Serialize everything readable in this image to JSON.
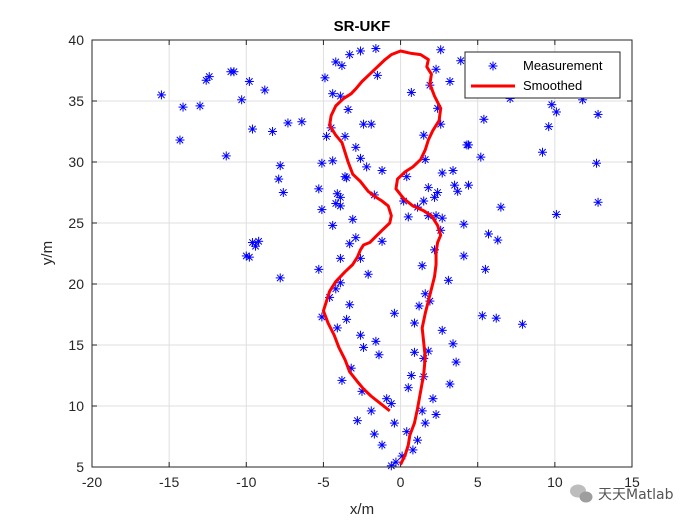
{
  "chart_data": {
    "type": "scatter",
    "title": "SR-UKF",
    "xlabel": "x/m",
    "ylabel": "y/m",
    "xlim": [
      -20,
      15
    ],
    "ylim": [
      5,
      40
    ],
    "xticks": [
      -20,
      -15,
      -10,
      -5,
      0,
      5,
      10,
      15
    ],
    "yticks": [
      5,
      10,
      15,
      20,
      25,
      30,
      35,
      40
    ],
    "grid": true,
    "legend_position": "top-right",
    "series": [
      {
        "name": "Measurement",
        "marker": "asterisk",
        "color": "#0000ff",
        "x": [
          -0.3,
          0.1,
          0.8,
          -0.6,
          1.1,
          0.4,
          -1.2,
          1.6,
          -1.7,
          2.3,
          -0.4,
          1.4,
          -2.8,
          2.1,
          -1.9,
          3.2,
          -0.9,
          -2.5,
          0.5,
          1.5,
          -3.8,
          0.7,
          -3.2,
          3.6,
          -1.4,
          -2.4,
          1.8,
          -1.6,
          3.4,
          -2.6,
          -4.1,
          0.9,
          2.7,
          -3.5,
          5.3,
          -0.4,
          1.2,
          -5.1,
          -3.3,
          1.9,
          -4.6,
          6.2,
          -4.2,
          1.6,
          7.9,
          -3.9,
          3.1,
          -2.1,
          -5.3,
          1.4,
          5.5,
          -7.8,
          -3.9,
          2.2,
          -2.6,
          4.1,
          -3.3,
          6.3,
          -1.2,
          2.6,
          -9.6,
          -4.4,
          5.7,
          -10.0,
          -3.1,
          2.3,
          -5.1,
          6.5,
          -3.9,
          1.5,
          -9.4,
          -4.1,
          2.2,
          -9.8,
          -5.3,
          4.4,
          0.4,
          -3.6,
          2.7,
          -5.1,
          3.4,
          -2.2,
          5.2,
          -7.9,
          -2.6,
          1.6,
          -2.9,
          -7.6,
          4.4,
          -3.6,
          1.5,
          -6.4,
          2.6,
          -2.4,
          5.4,
          -8.3,
          -3.4,
          2.4,
          9.8,
          -3.9,
          0.7,
          -4.4,
          -8.8,
          3.2,
          -4.9,
          1.9,
          -1.5,
          5.8,
          -3.8,
          2.3,
          -4.2,
          3.9,
          -11.0,
          -9.8,
          -3.3,
          10.1,
          -2.6,
          2.6,
          -4.5,
          -10.3,
          12.8,
          -14.1,
          7.1,
          -4.8,
          -12.6,
          9.2,
          -1.6,
          12.7,
          -9.6,
          4.3,
          -15.5,
          -3.9,
          -7.3,
          1.8,
          -14.3,
          -13.0,
          -7.8,
          11.8,
          -11.3,
          -9.2,
          9.6,
          -2.9,
          12.8,
          -10.8,
          -12.4,
          10.1,
          -1.9,
          3.7,
          -4.2,
          4.1,
          -1.7,
          0.5,
          -3.5,
          2.4,
          -1.2,
          1.1,
          3.5,
          -4.4,
          0.2,
          1.8,
          2.7,
          -0.6,
          0.9,
          1.5
        ],
        "y": [
          5.4,
          5.9,
          6.4,
          5.1,
          7.2,
          7.9,
          6.8,
          8.6,
          7.7,
          9.3,
          8.6,
          9.6,
          8.8,
          10.6,
          9.6,
          11.8,
          10.6,
          11.2,
          11.5,
          12.4,
          12.1,
          12.5,
          13.1,
          13.6,
          14.2,
          14.8,
          14.5,
          15.3,
          15.1,
          15.8,
          16.4,
          16.8,
          16.2,
          17.1,
          17.4,
          17.6,
          18.2,
          17.3,
          18.3,
          18.6,
          18.9,
          17.2,
          19.6,
          19.2,
          16.7,
          20.1,
          20.3,
          20.8,
          21.2,
          21.5,
          21.2,
          20.5,
          22.1,
          22.8,
          22.1,
          22.3,
          23.3,
          23.6,
          23.5,
          24.4,
          23.4,
          24.8,
          24.1,
          22.3,
          25.3,
          25.6,
          26.1,
          26.3,
          26.4,
          26.8,
          23.1,
          27.4,
          27.1,
          22.2,
          27.8,
          28.1,
          28.8,
          28.8,
          29.1,
          29.9,
          29.3,
          29.6,
          30.4,
          28.6,
          30.3,
          30.2,
          31.2,
          27.5,
          31.4,
          32.1,
          32.2,
          33.3,
          33.1,
          33.1,
          33.5,
          32.5,
          34.3,
          34.4,
          34.7,
          35.4,
          35.7,
          35.6,
          35.9,
          36.6,
          36.9,
          36.3,
          37.1,
          36.9,
          37.9,
          37.6,
          38.2,
          38.3,
          37.4,
          36.6,
          38.8,
          34.1,
          39.1,
          39.2,
          32.8,
          35.1,
          33.9,
          34.5,
          35.2,
          32.1,
          36.7,
          30.8,
          39.3,
          29.9,
          32.7,
          31.4,
          35.5,
          27.1,
          33.2,
          25.6,
          31.8,
          34.6,
          29.7,
          35.1,
          30.5,
          23.5,
          32.9,
          23.8,
          26.7,
          37.4,
          37.0,
          25.7,
          33.1,
          27.6,
          26.6,
          24.9,
          27.3,
          25.5,
          28.7,
          27.5,
          29.3,
          26.3,
          28.1,
          30.1,
          26.8,
          27.9,
          25.4,
          10.2,
          14.4,
          13.9
        ]
      },
      {
        "name": "Smoothed",
        "marker": "line",
        "color": "#ff0000",
        "x": [
          0.0,
          0.3,
          0.5,
          0.6,
          0.9,
          1.1,
          1.3,
          1.5,
          1.6,
          1.5,
          1.4,
          1.6,
          1.8,
          2.0,
          2.2,
          2.3,
          2.3,
          2.4,
          2.6,
          2.4,
          2.0,
          1.5,
          0.8,
          0.2,
          -0.3,
          -0.2,
          0.3,
          0.8,
          1.3,
          1.6,
          1.8,
          2.1,
          2.5,
          2.6,
          2.2,
          1.9,
          2.0,
          1.7,
          1.8,
          1.3,
          0.7,
          0.0,
          -0.6,
          -1.0,
          -1.5,
          -2.0,
          -2.5,
          -2.9,
          -3.2,
          -3.7,
          -4.2,
          -4.5,
          -4.6,
          -4.2,
          -3.8,
          -3.6,
          -3.4,
          -3.1,
          -2.6,
          -2.1,
          -1.7,
          -1.2,
          -0.8,
          -0.6,
          -0.7,
          -1.2,
          -1.6,
          -2.0,
          -2.4,
          -2.6,
          -2.8,
          -3.1,
          -3.6,
          -4.2,
          -4.6,
          -4.8,
          -5.0,
          -4.7,
          -4.3,
          -4.0,
          -3.6,
          -3.3,
          -2.8,
          -2.4,
          -1.9,
          -1.3,
          -0.7
        ],
        "y": [
          5.2,
          6.0,
          6.8,
          7.6,
          8.6,
          9.8,
          11.2,
          12.6,
          14.0,
          15.2,
          16.4,
          17.6,
          18.6,
          19.6,
          20.6,
          21.6,
          22.6,
          23.4,
          24.0,
          24.8,
          25.6,
          26.0,
          26.4,
          27.0,
          27.8,
          28.6,
          29.2,
          29.6,
          30.2,
          31.0,
          31.8,
          32.6,
          33.4,
          34.4,
          35.4,
          36.4,
          37.2,
          37.8,
          38.4,
          38.8,
          38.9,
          39.1,
          38.8,
          38.4,
          37.8,
          37.2,
          36.6,
          36.0,
          35.6,
          35.2,
          34.6,
          33.8,
          33.0,
          32.2,
          31.6,
          30.8,
          30.0,
          29.0,
          28.4,
          27.6,
          27.2,
          26.8,
          26.4,
          25.6,
          25.0,
          24.4,
          23.9,
          23.4,
          23.2,
          22.8,
          22.2,
          21.6,
          21.0,
          20.2,
          19.4,
          18.6,
          17.8,
          16.8,
          15.8,
          14.8,
          13.8,
          12.8,
          12.0,
          11.4,
          10.8,
          10.2,
          9.6
        ]
      }
    ]
  },
  "watermark": {
    "icon": "wechat-icon",
    "text": "天天Matlab"
  }
}
